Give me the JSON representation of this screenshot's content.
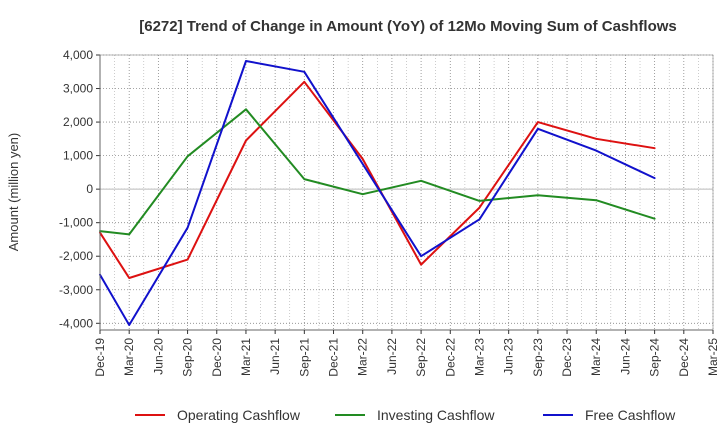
{
  "chart_data": {
    "type": "line",
    "title": "[6272]  Trend of Change in Amount (YoY) of 12Mo Moving Sum of Cashflows",
    "xlabel": "",
    "ylabel": "Amount (million yen)",
    "ylim": [
      -4200,
      4000
    ],
    "yticks": [
      4000,
      3000,
      2000,
      1000,
      0,
      -1000,
      -2000,
      -3000,
      -4000
    ],
    "ytick_labels": [
      "4,000",
      "3,000",
      "2,000",
      "1,000",
      "0",
      "-1,000",
      "-2,000",
      "-3,000",
      "-4,000"
    ],
    "categories": [
      "Dec-19",
      "Mar-20",
      "Jun-20",
      "Sep-20",
      "Dec-20",
      "Mar-21",
      "Jun-21",
      "Sep-21",
      "Dec-21",
      "Mar-22",
      "Jun-22",
      "Sep-22",
      "Dec-22",
      "Mar-23",
      "Jun-23",
      "Sep-23",
      "Dec-23",
      "Mar-24",
      "Jun-24",
      "Sep-24",
      "Dec-24",
      "Mar-25"
    ],
    "grid": true,
    "legend_position": "bottom",
    "series": [
      {
        "name": "Operating Cashflow",
        "color": "#dd1111",
        "values": [
          -1300,
          -2650,
          null,
          -2100,
          null,
          1450,
          null,
          3200,
          null,
          900,
          null,
          -2250,
          null,
          -550,
          null,
          2000,
          null,
          1500,
          null,
          1220,
          null,
          null
        ]
      },
      {
        "name": "Investing Cashflow",
        "color": "#228B22",
        "values": [
          -1250,
          -1350,
          null,
          980,
          null,
          2380,
          null,
          300,
          null,
          -150,
          null,
          250,
          null,
          -350,
          null,
          -180,
          null,
          -330,
          null,
          -880,
          null,
          null
        ]
      },
      {
        "name": "Free Cashflow",
        "color": "#1111cc",
        "values": [
          -2550,
          -4050,
          null,
          -1150,
          null,
          3820,
          null,
          3500,
          null,
          750,
          null,
          -2000,
          null,
          -900,
          null,
          1800,
          null,
          1150,
          null,
          330,
          null,
          null
        ]
      }
    ]
  }
}
